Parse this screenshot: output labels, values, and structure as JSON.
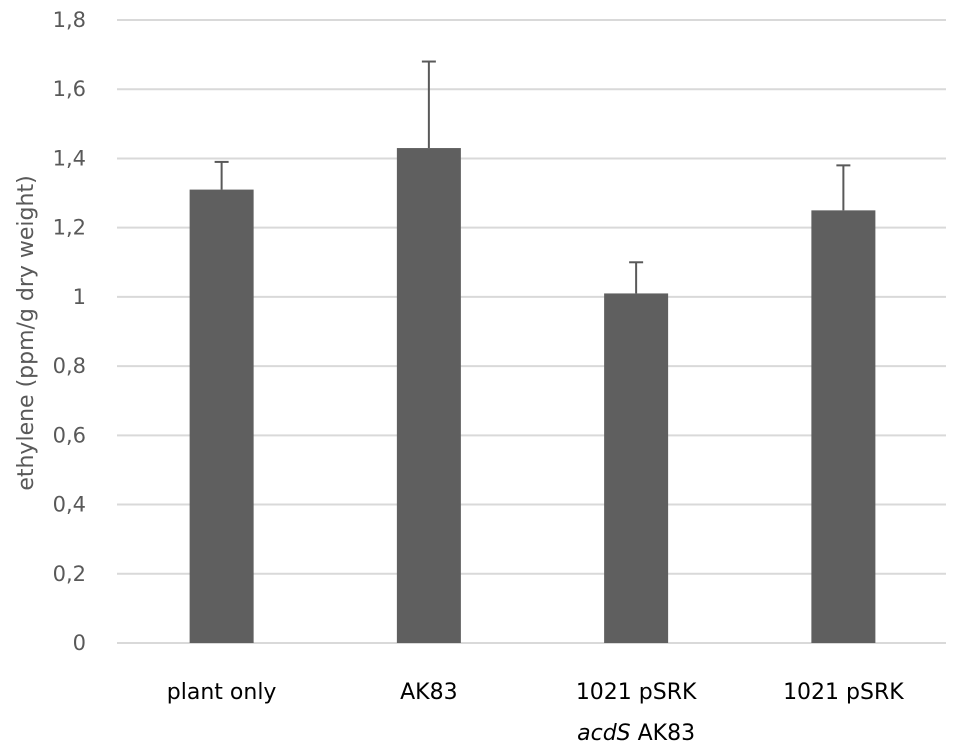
{
  "chart_data": {
    "type": "bar",
    "title": "",
    "xlabel": "",
    "ylabel": "ethylene (ppm/g dry weight)",
    "categories": [
      {
        "line1": "plant only",
        "line2": "",
        "line2_italic": ""
      },
      {
        "line1": "AK83",
        "line2": "",
        "line2_italic": ""
      },
      {
        "line1": "1021 pSRK",
        "line2_italic": "acdS",
        "line2": " AK83"
      },
      {
        "line1": "1021 pSRK",
        "line2": "",
        "line2_italic": ""
      }
    ],
    "values": [
      1.31,
      1.43,
      1.01,
      1.25
    ],
    "error_upper": [
      1.39,
      1.68,
      1.1,
      1.38
    ],
    "ylim": [
      0,
      1.8
    ],
    "yticks": [
      "0",
      "0,2",
      "0,4",
      "0,6",
      "0,8",
      "1",
      "1,2",
      "1,4",
      "1,6",
      "1,8"
    ],
    "grid": true,
    "legend": null,
    "colors": {
      "bar": "#5f5f5f",
      "grid": "#d9d9d9",
      "error": "#595959"
    }
  }
}
